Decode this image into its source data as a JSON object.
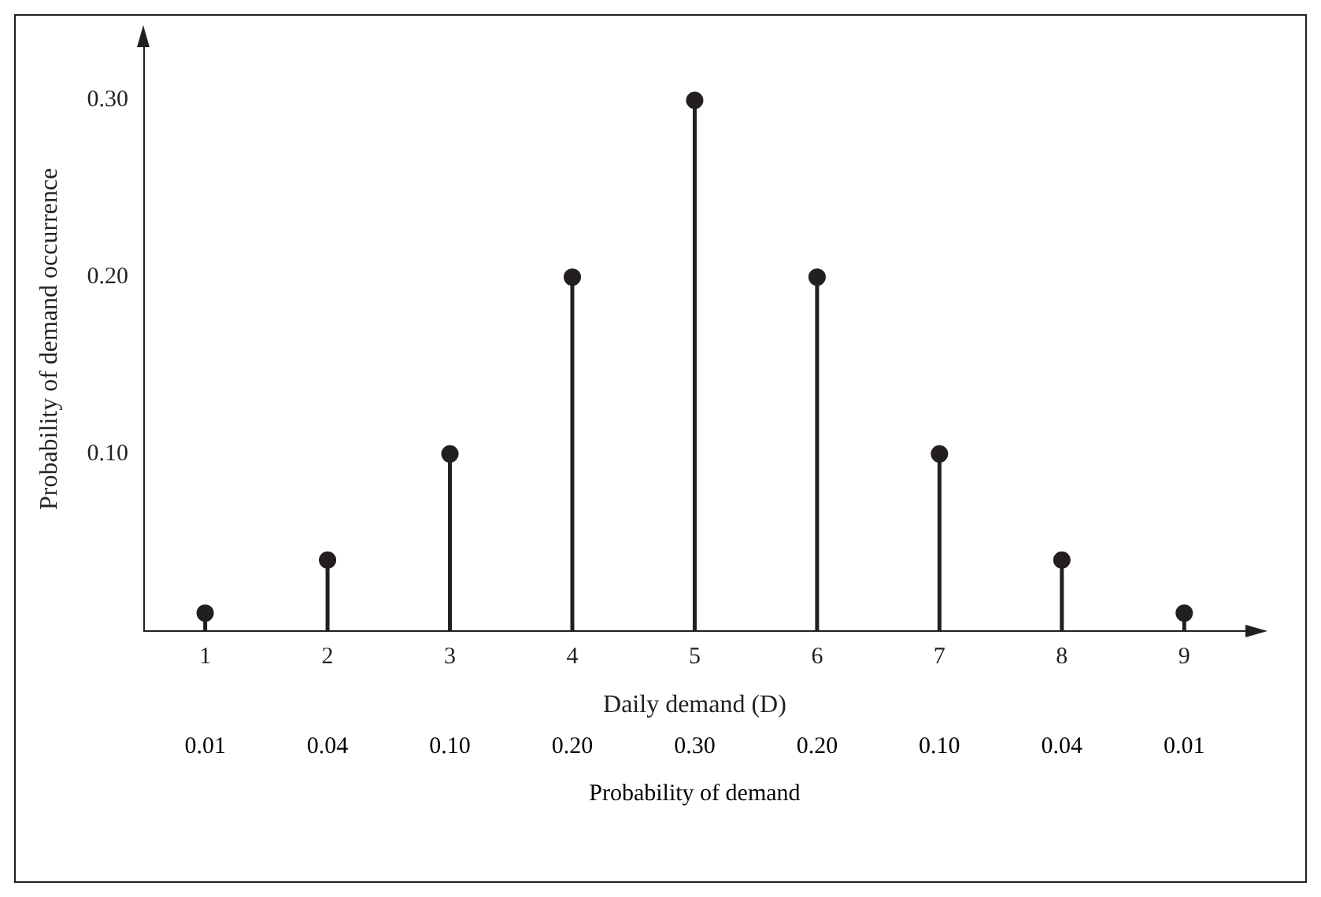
{
  "chart_data": {
    "type": "lollipop",
    "xlabel": "Daily demand (D)",
    "ylabel": "Probability of demand occurrence",
    "categories": [
      "1",
      "2",
      "3",
      "4",
      "5",
      "6",
      "7",
      "8",
      "9"
    ],
    "values": [
      0.01,
      0.04,
      0.1,
      0.2,
      0.3,
      0.2,
      0.1,
      0.04,
      0.01
    ],
    "value_labels": [
      "0.01",
      "0.04",
      "0.10",
      "0.20",
      "0.30",
      "0.20",
      "0.10",
      "0.04",
      "0.01"
    ],
    "color": "#231f20",
    "marker": "circle",
    "legend": false,
    "ylim": [
      0,
      0.33
    ],
    "yticks": [
      {
        "value": 0.1,
        "label": "0.10"
      },
      {
        "value": 0.2,
        "label": "0.20"
      },
      {
        "value": 0.3,
        "label": "0.30"
      }
    ],
    "annotations": [
      "Probability of demand"
    ]
  }
}
